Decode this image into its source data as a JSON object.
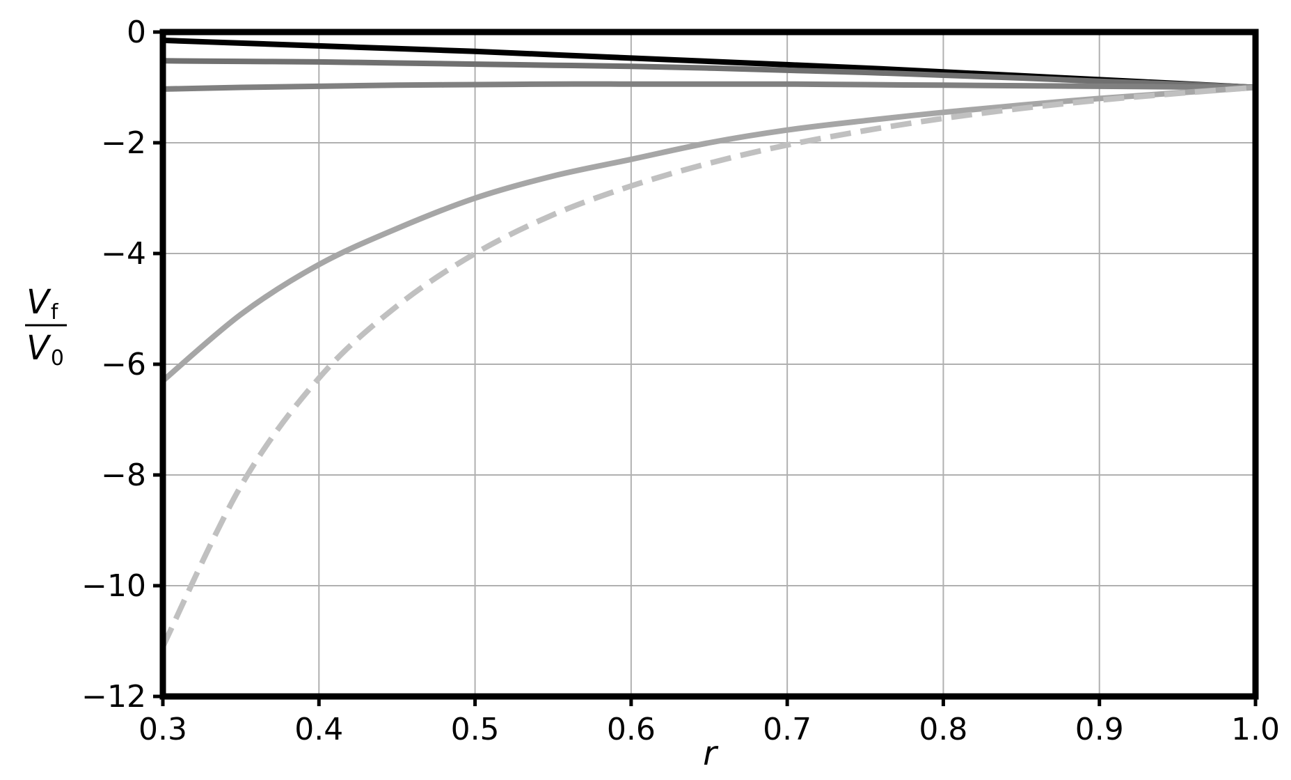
{
  "chart_data": {
    "type": "line",
    "xlabel": "r",
    "ylabel": {
      "numerator": "V",
      "numerator_sub": "f",
      "denominator": "V",
      "denominator_sub": "0"
    },
    "xlim": [
      0.3,
      1.0
    ],
    "ylim": [
      -12,
      0
    ],
    "xticks": [
      "0.3",
      "0.4",
      "0.5",
      "0.6",
      "0.7",
      "0.8",
      "0.9",
      "1.0"
    ],
    "yticks": [
      "0",
      "−2",
      "−4",
      "−6",
      "−8",
      "−10",
      "−12"
    ],
    "grid": true,
    "legend": "none",
    "x": [
      0.3,
      0.35,
      0.4,
      0.45,
      0.5,
      0.55,
      0.6,
      0.65,
      0.7,
      0.75,
      0.8,
      0.85,
      0.9,
      0.95,
      1.0
    ],
    "series": [
      {
        "color": "#000000",
        "style": "solid",
        "values": [
          -0.15,
          -0.2,
          -0.25,
          -0.3,
          -0.35,
          -0.41,
          -0.47,
          -0.53,
          -0.59,
          -0.65,
          -0.72,
          -0.79,
          -0.86,
          -0.93,
          -1.0
        ]
      },
      {
        "color": "#707070",
        "style": "solid",
        "values": [
          -0.52,
          -0.53,
          -0.54,
          -0.56,
          -0.58,
          -0.6,
          -0.62,
          -0.65,
          -0.69,
          -0.73,
          -0.78,
          -0.83,
          -0.89,
          -0.94,
          -1.0
        ]
      },
      {
        "color": "#808080",
        "style": "solid",
        "values": [
          -1.03,
          -1.0,
          -0.98,
          -0.96,
          -0.95,
          -0.94,
          -0.94,
          -0.94,
          -0.94,
          -0.95,
          -0.96,
          -0.97,
          -0.98,
          -0.99,
          -1.0
        ]
      },
      {
        "color": "#a6a6a6",
        "style": "solid",
        "values": [
          -6.3,
          -5.1,
          -4.2,
          -3.55,
          -3.0,
          -2.6,
          -2.3,
          -2.0,
          -1.77,
          -1.6,
          -1.45,
          -1.32,
          -1.2,
          -1.1,
          -1.0
        ]
      },
      {
        "color": "#c0c0c0",
        "style": "dashed",
        "values": [
          -11.1,
          -8.2,
          -6.25,
          -4.95,
          -4.0,
          -3.3,
          -2.78,
          -2.37,
          -2.04,
          -1.78,
          -1.56,
          -1.38,
          -1.23,
          -1.11,
          -1.0
        ]
      }
    ]
  }
}
